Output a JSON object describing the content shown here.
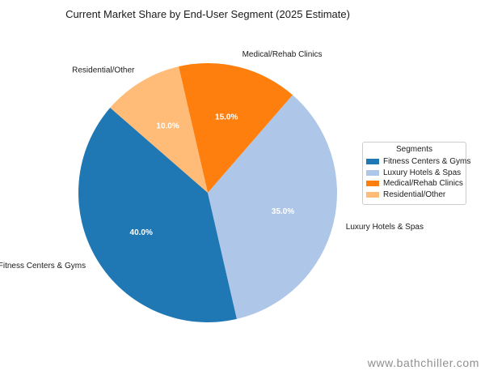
{
  "page": {
    "watermark": "www.bathchiller.com"
  },
  "chart_data": {
    "type": "pie",
    "title": "Current Market Share by End-User Segment (2025 Estimate)",
    "categories": [
      "Fitness Centers & Gyms",
      "Luxury Hotels & Spas",
      "Medical/Rehab Clinics",
      "Residential/Other"
    ],
    "values": [
      40.0,
      35.0,
      15.0,
      10.0
    ],
    "value_labels": [
      "40.0%",
      "35.0%",
      "15.0%",
      "10.0%"
    ],
    "colors": [
      "#1f77b4",
      "#aec7e8",
      "#ff7f0e",
      "#ffbb78"
    ],
    "start_angle_deg": 139,
    "direction": "counterclockwise",
    "pct_distance": 0.6,
    "label_distance": 1.1,
    "pct_label_color": "#ffffff",
    "category_label_color": "#1a1a1a",
    "legend": {
      "title": "Segments",
      "position": "center right",
      "entries": [
        "Fitness Centers & Gyms",
        "Luxury Hotels & Spas",
        "Medical/Rehab Clinics",
        "Residential/Other"
      ]
    }
  }
}
